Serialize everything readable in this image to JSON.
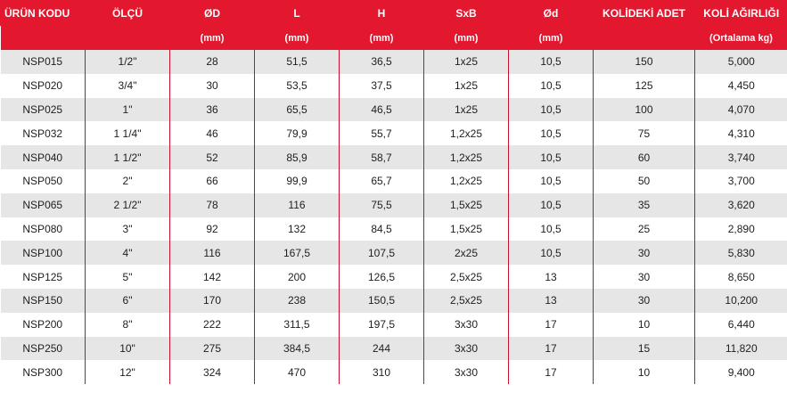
{
  "table": {
    "headers": [
      "ÜRÜN  KODU",
      "ÖLÇÜ",
      "ØD",
      "L",
      "H",
      "SxB",
      "Ød",
      "KOLİDEKİ ADET",
      "KOLİ AĞIRLIĞI"
    ],
    "units": [
      "",
      "",
      "(mm)",
      "(mm)",
      "(mm)",
      "(mm)",
      "(mm)",
      "",
      "(Ortalama kg)"
    ],
    "rows": [
      [
        "NSP015",
        "1/2\"",
        "28",
        "51,5",
        "36,5",
        "1x25",
        "10,5",
        "150",
        "5,000"
      ],
      [
        "NSP020",
        "3/4\"",
        "30",
        "53,5",
        "37,5",
        "1x25",
        "10,5",
        "125",
        "4,450"
      ],
      [
        "NSP025",
        "1\"",
        "36",
        "65,5",
        "46,5",
        "1x25",
        "10,5",
        "100",
        "4,070"
      ],
      [
        "NSP032",
        "1 1/4\"",
        "46",
        "79,9",
        "55,7",
        "1,2x25",
        "10,5",
        "75",
        "4,310"
      ],
      [
        "NSP040",
        "1 1/2\"",
        "52",
        "85,9",
        "58,7",
        "1,2x25",
        "10,5",
        "60",
        "3,740"
      ],
      [
        "NSP050",
        "2\"",
        "66",
        "99,9",
        "65,7",
        "1,2x25",
        "10,5",
        "50",
        "3,700"
      ],
      [
        "NSP065",
        "2 1/2\"",
        "78",
        "116",
        "75,5",
        "1,5x25",
        "10,5",
        "35",
        "3,620"
      ],
      [
        "NSP080",
        "3\"",
        "92",
        "132",
        "84,5",
        "1,5x25",
        "10,5",
        "25",
        "2,890"
      ],
      [
        "NSP100",
        "4\"",
        "116",
        "167,5",
        "107,5",
        "2x25",
        "10,5",
        "30",
        "5,830"
      ],
      [
        "NSP125",
        "5\"",
        "142",
        "200",
        "126,5",
        "2,5x25",
        "13",
        "30",
        "8,650"
      ],
      [
        "NSP150",
        "6\"",
        "170",
        "238",
        "150,5",
        "2,5x25",
        "13",
        "30",
        "10,200"
      ],
      [
        "NSP200",
        "8\"",
        "222",
        "311,5",
        "197,5",
        "3x30",
        "17",
        "10",
        "6,440"
      ],
      [
        "NSP250",
        "10\"",
        "275",
        "384,5",
        "244",
        "3x30",
        "17",
        "15",
        "11,820"
      ],
      [
        "NSP300",
        "12\"",
        "324",
        "470",
        "310",
        "3x30",
        "17",
        "10",
        "9,400"
      ]
    ]
  },
  "colors": {
    "header_bg": "#e3172d",
    "header_text": "#ffffff",
    "row_alt_bg": "#e6e6e6",
    "divider": "#c8102e"
  }
}
